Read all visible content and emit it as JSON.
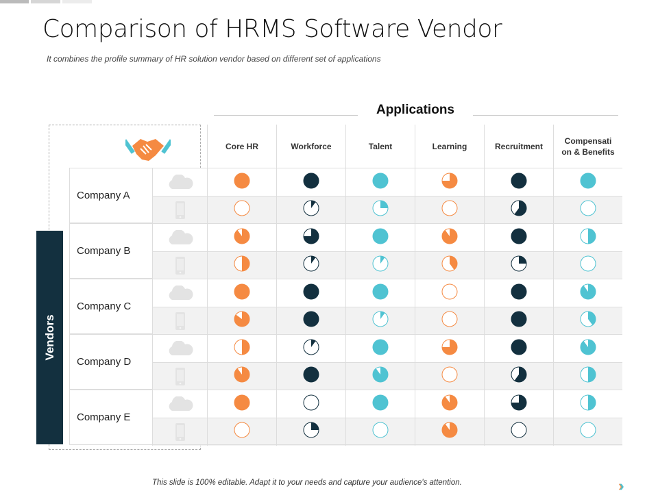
{
  "title": "Comparison of HRMS Software Vendor",
  "subtitle": "It combines the profile summary of HR solution vendor  based on different set of  applications",
  "applications_title": "Applications",
  "vendors_label": "Vendors",
  "columns": [
    "Core HR",
    "Workforce",
    "Talent",
    "Learning",
    "Recruitment",
    "Compensati on & Benefits"
  ],
  "column_colors": [
    "#f58a42",
    "#13303f",
    "#4fc3d2",
    "#f58a42",
    "#13303f",
    "#4fc3d2"
  ],
  "row_icons": [
    "cloud-icon",
    "mobile-icon"
  ],
  "companies": [
    {
      "name": "Company A",
      "cloud": [
        1,
        1,
        1,
        0.75,
        1,
        1
      ],
      "mobile": [
        0,
        0.1,
        0.25,
        0,
        0.6,
        0
      ]
    },
    {
      "name": "Company B",
      "cloud": [
        0.9,
        0.75,
        1,
        0.9,
        1,
        0.5
      ],
      "mobile": [
        0.5,
        0.1,
        0.1,
        0.4,
        0.25,
        0
      ]
    },
    {
      "name": "Company C",
      "cloud": [
        1,
        1,
        1,
        0,
        1,
        0.9
      ],
      "mobile": [
        0.85,
        1,
        0.1,
        0,
        1,
        0.4
      ]
    },
    {
      "name": "Company D",
      "cloud": [
        0.5,
        0.1,
        1,
        0.75,
        1,
        0.9
      ],
      "mobile": [
        0.9,
        1,
        0.9,
        0,
        0.6,
        0.5
      ]
    },
    {
      "name": "Company E",
      "cloud": [
        1,
        0,
        1,
        0.9,
        0.75,
        0.5
      ],
      "mobile": [
        0,
        0.25,
        0,
        0.9,
        0,
        0
      ]
    }
  ],
  "footer": "This slide is 100% editable. Adapt it to your needs and capture your audience's attention.",
  "next_icon": "double-chevron-right-icon"
}
